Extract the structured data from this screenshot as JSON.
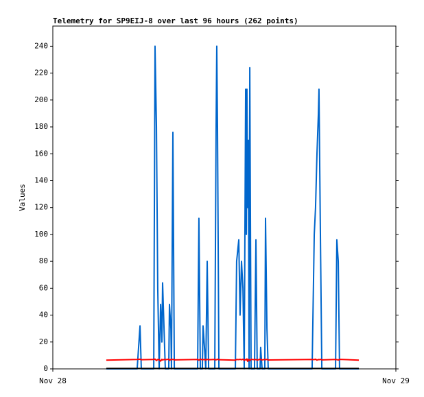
{
  "chart_data": {
    "type": "line",
    "title": "Telemetry for SP9EIJ-8 over last 96 hours (262 points)",
    "y_label": "Values",
    "xlim": [
      0,
      24
    ],
    "xticks": [
      {
        "value": 0,
        "label": "Nov 28"
      },
      {
        "value": 24,
        "label": "Nov 29"
      }
    ],
    "ylim": [
      0,
      255
    ],
    "yticks": [
      0,
      20,
      40,
      60,
      80,
      100,
      120,
      140,
      160,
      180,
      200,
      220,
      240
    ],
    "x": [
      3.74,
      5.9,
      6.1,
      6.19,
      7.06,
      7.15,
      7.25,
      7.34,
      7.44,
      7.54,
      7.63,
      7.68,
      7.78,
      7.87,
      8.11,
      8.16,
      8.26,
      8.3,
      8.4,
      8.5,
      10.13,
      10.22,
      10.32,
      10.46,
      10.51,
      10.61,
      10.7,
      10.8,
      10.9,
      11.33,
      11.42,
      11.47,
      11.52,
      11.62,
      12.77,
      12.86,
      13.01,
      13.1,
      13.2,
      13.3,
      13.39,
      13.49,
      13.54,
      13.58,
      13.63,
      13.68,
      13.73,
      13.78,
      13.87,
      14.11,
      14.21,
      14.3,
      14.5,
      14.54,
      14.64,
      14.83,
      14.88,
      14.98,
      15.07,
      18.14,
      18.29,
      18.38,
      18.48,
      18.58,
      18.62,
      18.72,
      18.82,
      19.78,
      19.87,
      19.97,
      20.06,
      21.41
    ],
    "series": [
      {
        "color": "#0066cc",
        "values": [
          0,
          0,
          32,
          0,
          0,
          240,
          180,
          60,
          0,
          48,
          20,
          64,
          30,
          0,
          0,
          48,
          30,
          0,
          176,
          0,
          0,
          112,
          0,
          0,
          32,
          16,
          0,
          80,
          0,
          0,
          176,
          240,
          180,
          0,
          0,
          80,
          96,
          40,
          80,
          60,
          0,
          208,
          100,
          208,
          120,
          170,
          0,
          224,
          0,
          0,
          96,
          0,
          0,
          16,
          0,
          0,
          112,
          30,
          0,
          0,
          100,
          120,
          160,
          190,
          208,
          100,
          0,
          0,
          96,
          80,
          0,
          0
        ]
      },
      {
        "color": "#ff0000",
        "values": [
          6.5,
          7,
          7.2,
          6.8,
          7,
          7.3,
          6.2,
          7,
          6.9,
          5.8,
          7.1,
          6.6,
          7,
          6.8,
          7.2,
          6.4,
          7,
          6.9,
          7.1,
          6.7,
          7,
          6.5,
          7.2,
          6.8,
          6.9,
          7,
          6.6,
          7.1,
          6.8,
          7,
          6.7,
          6.9,
          7.2,
          6.8,
          6.5,
          7,
          6.9,
          7.1,
          6.8,
          7.2,
          6.4,
          7,
          6.7,
          7.4,
          5.6,
          7,
          6.9,
          6.2,
          7.1,
          6.8,
          7,
          6.5,
          7.2,
          6.9,
          6.7,
          7,
          6.8,
          7.1,
          6.6,
          7,
          6.9,
          7.2,
          6.5,
          7,
          6.8,
          7.1,
          6.7,
          7,
          6.9,
          6.6,
          7.1,
          6.5
        ]
      },
      {
        "color": "#000000",
        "values": [
          0.3,
          0.3,
          0.3,
          0.3,
          0.3,
          0.3,
          0.3,
          0.3,
          0.3,
          0.3,
          0.3,
          0.3,
          0.3,
          0.3,
          0.3,
          0.3,
          0.3,
          0.3,
          0.3,
          0.3,
          0.3,
          0.3,
          0.3,
          0.3,
          0.3,
          0.3,
          0.3,
          0.3,
          0.3,
          0.3,
          0.3,
          0.3,
          0.3,
          0.3,
          0.3,
          0.3,
          0.3,
          0.3,
          0.3,
          0.3,
          0.3,
          0.3,
          0.3,
          0.3,
          0.3,
          0.3,
          0.3,
          0.3,
          0.3,
          0.3,
          0.3,
          0.3,
          0.3,
          0.3,
          0.3,
          0.3,
          0.3,
          0.3,
          0.3,
          0.3,
          0.3,
          0.3,
          0.3,
          0.3,
          0.3,
          0.3,
          0.3,
          0.3,
          0.3,
          0.3,
          0.3,
          0.3
        ]
      }
    ]
  }
}
